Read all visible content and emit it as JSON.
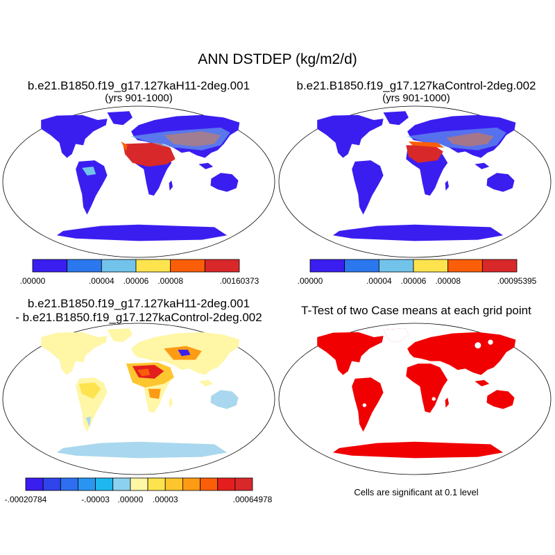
{
  "title": "ANN DSTDEP (kg/m2/d)",
  "panels": [
    {
      "case": "b.e21.B1850.f19_g17.127kaH11-2deg.001",
      "years": "(yrs 901-1000)",
      "legend": {
        "colors": [
          "#3a1ef0",
          "#2b78ee",
          "#72c3ea",
          "#fde44f",
          "#fb5e08",
          "#d8282a"
        ],
        "ticks": [
          ".00000",
          ".00004",
          ".00006",
          ".00008",
          ".00160373"
        ],
        "tick_boundaries": [
          0,
          2,
          3,
          4,
          6
        ]
      }
    },
    {
      "case": "b.e21.B1850.f19_g17.127kaControl-2deg.002",
      "years": "(yrs 901-1000)",
      "legend": {
        "colors": [
          "#3a1ef0",
          "#2b78ee",
          "#72c3ea",
          "#fde44f",
          "#fb5e08",
          "#d8282a"
        ],
        "ticks": [
          ".00000",
          ".00004",
          ".00006",
          ".00008",
          ".00095395"
        ],
        "tick_boundaries": [
          0,
          2,
          3,
          4,
          6
        ]
      }
    },
    {
      "case": "b.e21.B1850.f19_g17.127kaH11-2deg.001",
      "case2": "- b.e21.B1850.f19_g17.127kaControl-2deg.002",
      "legend": {
        "colors": [
          "#3a1ef0",
          "#2f44e9",
          "#2d6ff0",
          "#2a95f0",
          "#1fb7ef",
          "#8dd1f0",
          "#fff6a6",
          "#fde44f",
          "#fdc62e",
          "#fd9b14",
          "#fb5e08",
          "#e41e1e",
          "#d8282a"
        ],
        "ticks": [
          "-.00020784",
          "-.00003",
          ".00000",
          ".00003",
          ".00064978"
        ],
        "tick_boundaries": [
          0,
          4,
          6,
          8,
          13
        ]
      }
    },
    {
      "title": "T-Test of two Case means at each grid point",
      "note": "Cells are significant at 0.1 level"
    }
  ]
}
